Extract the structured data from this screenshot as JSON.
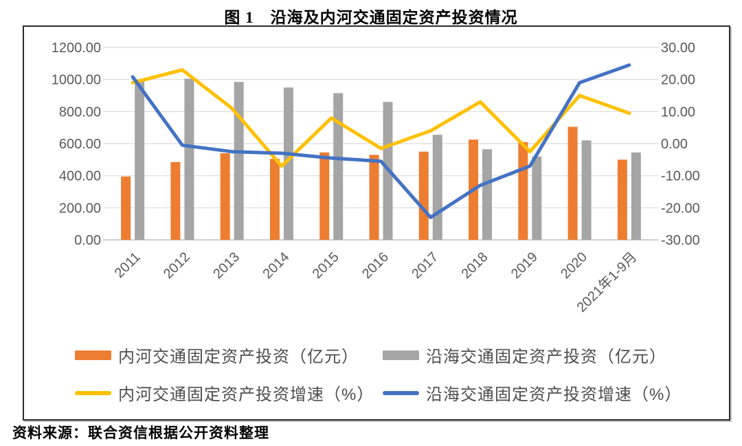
{
  "title": "图 1　沿海及内河交通固定资产投资情况",
  "source": "资料来源：联合资信根据公开资料整理",
  "chart_data": {
    "type": "bar",
    "subtype": "combo-bar-line-dual-axis",
    "categories": [
      "2011",
      "2012",
      "2013",
      "2014",
      "2015",
      "2016",
      "2017",
      "2018",
      "2019",
      "2020",
      "2021年1-9月"
    ],
    "series": [
      {
        "name": "内河交通固定资产投资（亿元）",
        "type": "bar",
        "axis": "left",
        "color": "#ED7D31",
        "values": [
          395,
          485,
          540,
          505,
          545,
          530,
          550,
          625,
          610,
          705,
          500
        ]
      },
      {
        "name": "沿海交通固定资产投资（亿元）",
        "type": "bar",
        "axis": "left",
        "color": "#A5A5A5",
        "values": [
          995,
          1005,
          985,
          950,
          915,
          860,
          655,
          565,
          520,
          620,
          545
        ]
      },
      {
        "name": "内河交通固定资产投资增速（%）",
        "type": "line",
        "axis": "right",
        "color": "#FFC000",
        "values": [
          19,
          23,
          11,
          -7,
          8,
          -1.5,
          4,
          13,
          -2.5,
          15,
          9.5
        ]
      },
      {
        "name": "沿海交通固定资产投资增速（%）",
        "type": "line",
        "axis": "right",
        "color": "#4472C4",
        "values": [
          20.8,
          -0.5,
          -2.5,
          -3,
          -4.5,
          -5.5,
          -23,
          -13,
          -7,
          19,
          24.5
        ]
      }
    ],
    "left_axis": {
      "min": 0,
      "max": 1200,
      "step": 200,
      "ticks": [
        "1200.00",
        "1000.00",
        "800.00",
        "600.00",
        "400.00",
        "200.00",
        "0.00"
      ]
    },
    "right_axis": {
      "min": -30,
      "max": 30,
      "step": 10,
      "ticks": [
        "30.00",
        "20.00",
        "10.00",
        "0.00",
        "-10.00",
        "-20.00",
        "-30.00"
      ]
    },
    "grid": true,
    "legend_position": "bottom",
    "colors": {
      "grid": "#d9d9d9",
      "axis_line": "#bfbfbf",
      "tick_text": "#595959"
    }
  }
}
